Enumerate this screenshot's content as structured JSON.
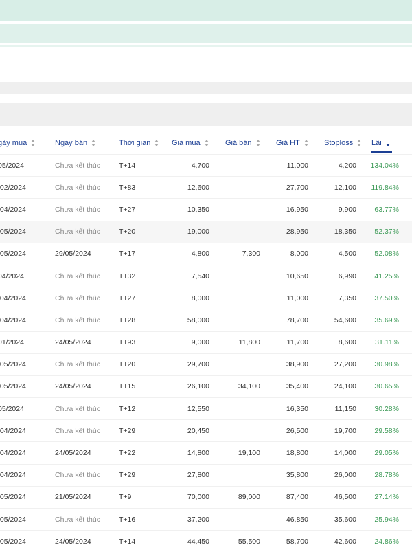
{
  "headers": {
    "ngay_mua": "gày mua",
    "ngay_ban": "Ngày bán",
    "thoi_gian": "Thời gian",
    "gia_mua": "Giá mua",
    "gia_ban": "Giá bán",
    "gia_ht": "Giá HT",
    "stoploss": "Stoploss",
    "lai": "Lãi"
  },
  "rows": [
    {
      "ngay_mua": "05/2024",
      "ngay_ban": "Chưa kết thúc",
      "thoi_gian": "T+14",
      "gia_mua": "4,700",
      "gia_ban": "",
      "gia_ht": "11,000",
      "stoploss": "4,200",
      "lai": "134.04%"
    },
    {
      "ngay_mua": "/02/2024",
      "ngay_ban": "Chưa kết thúc",
      "thoi_gian": "T+83",
      "gia_mua": "12,600",
      "gia_ban": "",
      "gia_ht": "27,700",
      "stoploss": "12,100",
      "lai": "119.84%"
    },
    {
      "ngay_mua": "/04/2024",
      "ngay_ban": "Chưa kết thúc",
      "thoi_gian": "T+27",
      "gia_mua": "10,350",
      "gia_ban": "",
      "gia_ht": "16,950",
      "stoploss": "9,900",
      "lai": "63.77%"
    },
    {
      "ngay_mua": "/05/2024",
      "ngay_ban": "Chưa kết thúc",
      "thoi_gian": "T+20",
      "gia_mua": "19,000",
      "gia_ban": "",
      "gia_ht": "28,950",
      "stoploss": "18,350",
      "lai": "52.37%"
    },
    {
      "ngay_mua": "/05/2024",
      "ngay_ban": "29/05/2024",
      "thoi_gian": "T+17",
      "gia_mua": "4,800",
      "gia_ban": "7,300",
      "gia_ht": "8,000",
      "stoploss": "4,500",
      "lai": "52.08%"
    },
    {
      "ngay_mua": "04/2024",
      "ngay_ban": "Chưa kết thúc",
      "thoi_gian": "T+32",
      "gia_mua": "7,540",
      "gia_ban": "",
      "gia_ht": "10,650",
      "stoploss": "6,990",
      "lai": "41.25%"
    },
    {
      "ngay_mua": "/04/2024",
      "ngay_ban": "Chưa kết thúc",
      "thoi_gian": "T+27",
      "gia_mua": "8,000",
      "gia_ban": "",
      "gia_ht": "11,000",
      "stoploss": "7,350",
      "lai": "37.50%"
    },
    {
      "ngay_mua": "/04/2024",
      "ngay_ban": "Chưa kết thúc",
      "thoi_gian": "T+28",
      "gia_mua": "58,000",
      "gia_ban": "",
      "gia_ht": "78,700",
      "stoploss": "54,600",
      "lai": "35.69%"
    },
    {
      "ngay_mua": "01/2024",
      "ngay_ban": "24/05/2024",
      "thoi_gian": "T+93",
      "gia_mua": "9,000",
      "gia_ban": "11,800",
      "gia_ht": "11,700",
      "stoploss": "8,600",
      "lai": "31.11%"
    },
    {
      "ngay_mua": "/05/2024",
      "ngay_ban": "Chưa kết thúc",
      "thoi_gian": "T+20",
      "gia_mua": "29,700",
      "gia_ban": "",
      "gia_ht": "38,900",
      "stoploss": "27,200",
      "lai": "30.98%"
    },
    {
      "ngay_mua": "/05/2024",
      "ngay_ban": "24/05/2024",
      "thoi_gian": "T+15",
      "gia_mua": "26,100",
      "gia_ban": "34,100",
      "gia_ht": "35,400",
      "stoploss": "24,100",
      "lai": "30.65%"
    },
    {
      "ngay_mua": "05/2024",
      "ngay_ban": "Chưa kết thúc",
      "thoi_gian": "T+12",
      "gia_mua": "12,550",
      "gia_ban": "",
      "gia_ht": "16,350",
      "stoploss": "11,150",
      "lai": "30.28%"
    },
    {
      "ngay_mua": "/04/2024",
      "ngay_ban": "Chưa kết thúc",
      "thoi_gian": "T+29",
      "gia_mua": "20,450",
      "gia_ban": "",
      "gia_ht": "26,500",
      "stoploss": "19,700",
      "lai": "29.58%"
    },
    {
      "ngay_mua": "/04/2024",
      "ngay_ban": "24/05/2024",
      "thoi_gian": "T+22",
      "gia_mua": "14,800",
      "gia_ban": "19,100",
      "gia_ht": "18,800",
      "stoploss": "14,000",
      "lai": "29.05%"
    },
    {
      "ngay_mua": "/04/2024",
      "ngay_ban": "Chưa kết thúc",
      "thoi_gian": "T+29",
      "gia_mua": "27,800",
      "gia_ban": "",
      "gia_ht": "35,800",
      "stoploss": "26,000",
      "lai": "28.78%"
    },
    {
      "ngay_mua": "/05/2024",
      "ngay_ban": "21/05/2024",
      "thoi_gian": "T+9",
      "gia_mua": "70,000",
      "gia_ban": "89,000",
      "gia_ht": "87,400",
      "stoploss": "46,500",
      "lai": "27.14%"
    },
    {
      "ngay_mua": "/05/2024",
      "ngay_ban": "Chưa kết thúc",
      "thoi_gian": "T+16",
      "gia_mua": "37,200",
      "gia_ban": "",
      "gia_ht": "46,850",
      "stoploss": "35,600",
      "lai": "25.94%"
    },
    {
      "ngay_mua": "/05/2024",
      "ngay_ban": "24/05/2024",
      "thoi_gian": "T+14",
      "gia_mua": "44,450",
      "gia_ban": "55,500",
      "gia_ht": "58,700",
      "stoploss": "42,600",
      "lai": "24.86%"
    }
  ]
}
